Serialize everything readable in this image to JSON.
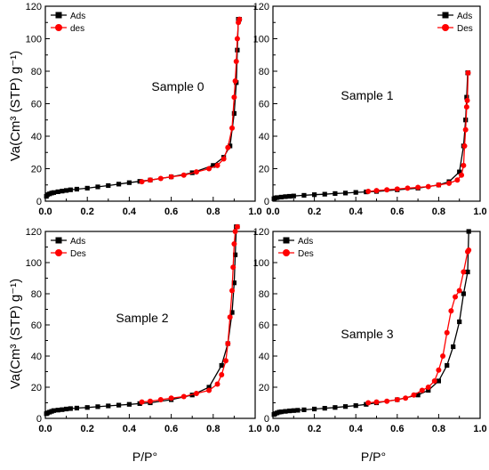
{
  "figure": {
    "ylabel": "Va(Cm³ (STP) g⁻¹)",
    "xlabel": "P/P°",
    "colors": {
      "ads": "#000000",
      "des": "#ff0000"
    }
  },
  "chart_data": [
    {
      "type": "line",
      "title": "Sample 0",
      "xlim": [
        0,
        1.0
      ],
      "ylim": [
        0,
        120
      ],
      "xticks": [
        "0.0",
        "0.2",
        "0.4",
        "0.6",
        "0.8",
        "1.0"
      ],
      "yticks": [
        "0",
        "20",
        "40",
        "60",
        "80",
        "100",
        "120"
      ],
      "legend_position": "top-left",
      "series": [
        {
          "name": "Ads",
          "marker": "square",
          "x": [
            0.005,
            0.01,
            0.02,
            0.03,
            0.04,
            0.06,
            0.08,
            0.1,
            0.12,
            0.15,
            0.2,
            0.25,
            0.3,
            0.35,
            0.4,
            0.45,
            0.5,
            0.6,
            0.7,
            0.8,
            0.85,
            0.88,
            0.9,
            0.91,
            0.915,
            0.92,
            0.925
          ],
          "y": [
            3,
            4,
            4.5,
            5,
            5.3,
            5.8,
            6.2,
            6.6,
            7,
            7.4,
            8,
            8.8,
            9.6,
            10.5,
            11.4,
            12.2,
            13,
            15,
            17.5,
            22,
            27,
            34,
            54,
            73,
            93,
            112,
            112
          ]
        },
        {
          "name": "des",
          "marker": "circle",
          "x": [
            0.925,
            0.92,
            0.915,
            0.91,
            0.905,
            0.9,
            0.89,
            0.87,
            0.85,
            0.82,
            0.78,
            0.72,
            0.66,
            0.6,
            0.55,
            0.5,
            0.46
          ],
          "y": [
            112,
            110,
            100,
            86,
            74,
            64,
            45,
            33,
            26,
            22,
            20,
            18,
            16,
            15,
            14,
            13,
            12
          ]
        }
      ]
    },
    {
      "type": "line",
      "title": "Sample 1",
      "xlim": [
        0,
        1.0
      ],
      "ylim": [
        0,
        120
      ],
      "xticks": [
        "0.0",
        "0.2",
        "0.4",
        "0.6",
        "0.8",
        "1.0"
      ],
      "yticks": [
        "0",
        "20",
        "40",
        "60",
        "80",
        "100",
        "120"
      ],
      "legend_position": "top-right",
      "series": [
        {
          "name": "Ads",
          "marker": "square",
          "x": [
            0.005,
            0.01,
            0.02,
            0.04,
            0.06,
            0.08,
            0.1,
            0.15,
            0.2,
            0.25,
            0.3,
            0.35,
            0.4,
            0.45,
            0.5,
            0.6,
            0.7,
            0.8,
            0.85,
            0.9,
            0.92,
            0.93,
            0.935,
            0.94,
            0.942
          ],
          "y": [
            1.5,
            2,
            2.2,
            2.5,
            2.8,
            3,
            3.2,
            3.6,
            4,
            4.3,
            4.7,
            5,
            5.4,
            5.7,
            6,
            7,
            8,
            10,
            12,
            18,
            34,
            50,
            64,
            79,
            79
          ]
        },
        {
          "name": "Des",
          "marker": "circle",
          "x": [
            0.942,
            0.938,
            0.935,
            0.93,
            0.925,
            0.92,
            0.91,
            0.89,
            0.85,
            0.8,
            0.75,
            0.7,
            0.65,
            0.6,
            0.55,
            0.5,
            0.46
          ],
          "y": [
            79,
            62,
            58,
            44,
            34,
            22,
            16,
            13,
            11,
            10,
            9,
            8.5,
            8,
            7.5,
            7,
            6.5,
            6
          ]
        }
      ]
    },
    {
      "type": "line",
      "title": "Sample 2",
      "xlim": [
        0,
        1.0
      ],
      "ylim": [
        0,
        120
      ],
      "xticks": [
        "0.0",
        "0.2",
        "0.4",
        "0.6",
        "0.8",
        "1.0"
      ],
      "yticks": [
        "0",
        "20",
        "40",
        "60",
        "80",
        "100",
        "120"
      ],
      "legend_position": "top-left",
      "series": [
        {
          "name": "Ads",
          "marker": "square",
          "x": [
            0.005,
            0.01,
            0.02,
            0.03,
            0.04,
            0.06,
            0.08,
            0.1,
            0.12,
            0.15,
            0.2,
            0.25,
            0.3,
            0.35,
            0.4,
            0.45,
            0.5,
            0.6,
            0.7,
            0.78,
            0.84,
            0.87,
            0.89,
            0.9,
            0.905,
            0.91,
            0.915
          ],
          "y": [
            3,
            3.5,
            4,
            4.5,
            5,
            5.3,
            5.6,
            6,
            6.3,
            6.6,
            7,
            7.5,
            8,
            8.5,
            9,
            9.5,
            10,
            12,
            15,
            20,
            34,
            48,
            68,
            87,
            105,
            123,
            123
          ]
        },
        {
          "name": "Des",
          "marker": "circle",
          "x": [
            0.915,
            0.905,
            0.9,
            0.895,
            0.89,
            0.88,
            0.87,
            0.86,
            0.84,
            0.82,
            0.78,
            0.72,
            0.66,
            0.6,
            0.55,
            0.5,
            0.46
          ],
          "y": [
            123,
            120,
            112,
            97,
            82,
            65,
            48,
            37,
            28,
            22,
            18,
            16,
            14,
            13,
            12,
            11,
            10.5
          ]
        }
      ]
    },
    {
      "type": "line",
      "title": "Sample 3",
      "xlim": [
        0,
        1.0
      ],
      "ylim": [
        0,
        120
      ],
      "xticks": [
        "0.0",
        "0.2",
        "0.4",
        "0.6",
        "0.8",
        "1.0"
      ],
      "yticks": [
        "0",
        "20",
        "40",
        "60",
        "80",
        "100",
        "120"
      ],
      "legend_position": "top-left",
      "series": [
        {
          "name": "Ads",
          "marker": "square",
          "x": [
            0.005,
            0.01,
            0.02,
            0.03,
            0.04,
            0.06,
            0.08,
            0.1,
            0.12,
            0.15,
            0.2,
            0.25,
            0.3,
            0.35,
            0.4,
            0.45,
            0.5,
            0.6,
            0.7,
            0.75,
            0.8,
            0.84,
            0.87,
            0.9,
            0.92,
            0.94,
            0.945
          ],
          "y": [
            2.5,
            3,
            3.5,
            4,
            4.2,
            4.5,
            4.8,
            5,
            5.2,
            5.5,
            6,
            6.5,
            7,
            7.6,
            8.2,
            9,
            10,
            12,
            15,
            18,
            24,
            34,
            46,
            62,
            80,
            94,
            120
          ]
        },
        {
          "name": "Des",
          "marker": "circle",
          "x": [
            0.945,
            0.94,
            0.92,
            0.9,
            0.88,
            0.86,
            0.84,
            0.82,
            0.8,
            0.78,
            0.75,
            0.72,
            0.68,
            0.64,
            0.6,
            0.55,
            0.5,
            0.46
          ],
          "y": [
            108,
            107,
            94,
            82,
            78,
            69,
            55,
            40,
            31,
            24,
            20,
            18,
            15,
            13,
            12,
            11,
            10.5,
            10
          ]
        }
      ]
    }
  ]
}
